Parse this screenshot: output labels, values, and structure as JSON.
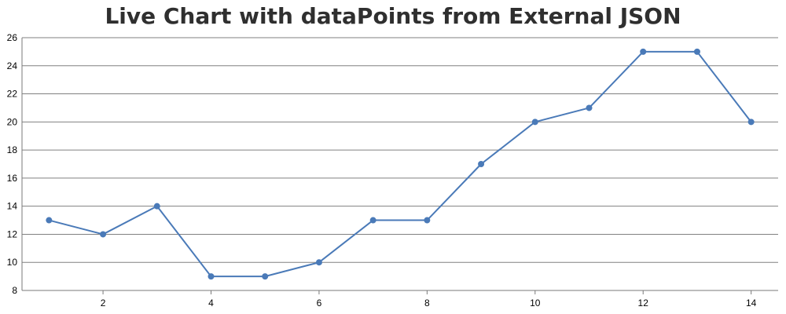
{
  "chart_data": {
    "type": "line",
    "title": "Live Chart with dataPoints from External JSON",
    "xlabel": "",
    "ylabel": "",
    "x": [
      1,
      2,
      3,
      4,
      5,
      6,
      7,
      8,
      9,
      10,
      11,
      12,
      13,
      14
    ],
    "series": [
      {
        "values": [
          13,
          12,
          14,
          9,
          9,
          10,
          13,
          13,
          17,
          20,
          21,
          25,
          25,
          20
        ]
      }
    ],
    "xlim": [
      0.5,
      14.5
    ],
    "ylim": [
      8,
      26
    ],
    "xticks": [
      2,
      4,
      6,
      8,
      10,
      12,
      14
    ],
    "yticks": [
      8,
      10,
      12,
      14,
      16,
      18,
      20,
      22,
      24,
      26
    ],
    "grid": "horizontal",
    "legend": "none",
    "colors": {
      "series": "#4a7ab8",
      "grid": "#808080",
      "axis": "#7a7a7a"
    }
  }
}
